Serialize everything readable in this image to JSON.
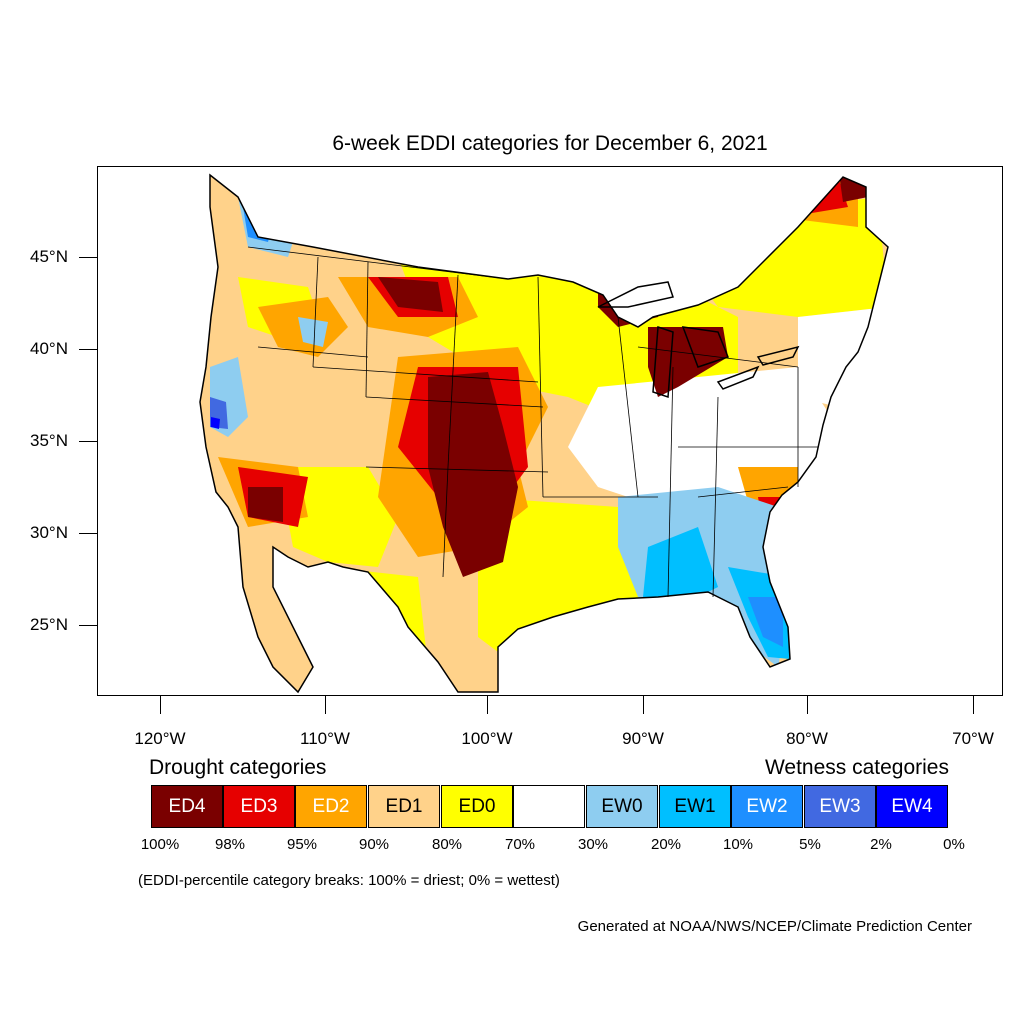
{
  "title": "6-week EDDI categories for December 6, 2021",
  "lat_labels": [
    {
      "label": "45°N",
      "lat": 45
    },
    {
      "label": "40°N",
      "lat": 40
    },
    {
      "label": "35°N",
      "lat": 35
    },
    {
      "label": "30°N",
      "lat": 30
    },
    {
      "label": "25°N",
      "lat": 25
    }
  ],
  "lon_labels": [
    {
      "label": "120°W",
      "lon": -120
    },
    {
      "label": "110°W",
      "lon": -110
    },
    {
      "label": "100°W",
      "lon": -100
    },
    {
      "label": "90°W",
      "lon": -90
    },
    {
      "label": "80°W",
      "lon": -80
    },
    {
      "label": "70°W",
      "lon": -70
    }
  ],
  "legend": {
    "drought_label": "Drought categories",
    "wetness_label": "Wetness categories",
    "categories": [
      {
        "label": "ED4",
        "color": "#7a0000",
        "text_color": "#ffffff"
      },
      {
        "label": "ED3",
        "color": "#e60000",
        "text_color": "#ffffff"
      },
      {
        "label": "ED2",
        "color": "#ffa500",
        "text_color": "#ffffff"
      },
      {
        "label": "ED1",
        "color": "#ffd28a",
        "text_color": "#000000"
      },
      {
        "label": "ED0",
        "color": "#ffff00",
        "text_color": "#000000"
      },
      {
        "label": "",
        "color": "#ffffff",
        "text_color": "#000000"
      },
      {
        "label": "EW0",
        "color": "#8ecdf0",
        "text_color": "#000000"
      },
      {
        "label": "EW1",
        "color": "#00bfff",
        "text_color": "#000000"
      },
      {
        "label": "EW2",
        "color": "#1e8fff",
        "text_color": "#ffffff"
      },
      {
        "label": "EW3",
        "color": "#4169e1",
        "text_color": "#ffffff"
      },
      {
        "label": "EW4",
        "color": "#0000ff",
        "text_color": "#ffffff"
      }
    ],
    "breaks": [
      "100%",
      "98%",
      "95%",
      "90%",
      "80%",
      "70%",
      "30%",
      "20%",
      "10%",
      "5%",
      "2%",
      "0%"
    ]
  },
  "note": "(EDDI-percentile category breaks: 100% = driest; 0% = wettest)",
  "credit": "Generated at NOAA/NWS/NCEP/Climate Prediction Center",
  "map": {
    "projection": "lambert-conformal",
    "region": "contiguous-united-states",
    "notable_regions": [
      {
        "name": "southern-high-plains",
        "category": "ED4"
      },
      {
        "name": "northern-rockies-plains",
        "category": "ED3"
      },
      {
        "name": "upper-great-lakes",
        "category": "ED4"
      },
      {
        "name": "southeast-gulf-coast",
        "category": "EW1"
      },
      {
        "name": "northern-california",
        "category": "EW3"
      }
    ]
  }
}
